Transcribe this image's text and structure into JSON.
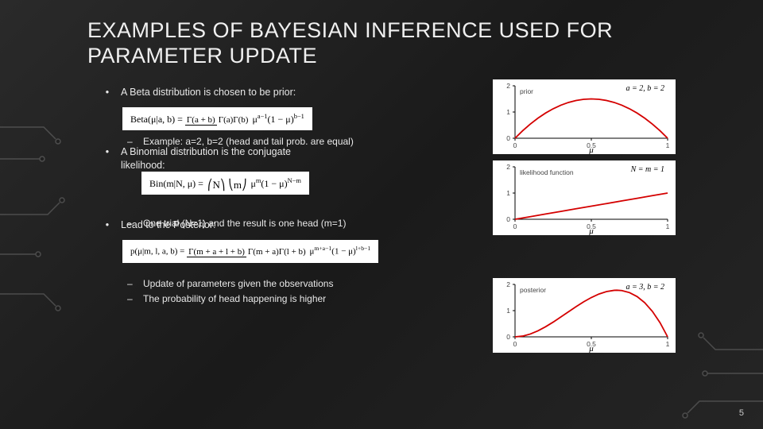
{
  "title": "EXAMPLES OF BAYESIAN INFERENCE USED FOR PARAMETER UPDATE",
  "page_number": "5",
  "bullets": {
    "b1": "A Beta distribution is chosen to be prior:",
    "b1_sub": "Example: a=2, b=2 (head and tail prob. are equal)",
    "b2_l1": "A Binomial distribution is the conjugate",
    "b2_l2": "likelihood:",
    "b2_sub": "One trial (N=1) and the result is one head (m=1)",
    "b3": "Lead to the Posterior:",
    "b3_sub1": "Update of parameters given the observations",
    "b3_sub2": "The probability of head happening is higher"
  },
  "formulas": {
    "beta": "Beta(μ|a, b) = Γ(a + b) / (Γ(a)Γ(b)) · μ^(a−1)(1−μ)^(b−1)",
    "binom": "Bin(m|N, μ) = (N choose m) μ^m (1−μ)^(N−m)",
    "posterior": "p(μ|m, l, a, b) = Γ(m + a + l + b) / (Γ(m + a)Γ(l + b)) · μ^(m+a−1)(1−μ)^(l+b−1)"
  },
  "charts": {
    "prior": {
      "type": "line",
      "title_annot": "a = 2, b = 2",
      "legend": "prior",
      "xlabel": "μ",
      "xlim": [
        0,
        1
      ],
      "ylim": [
        0,
        2
      ],
      "xticks": [
        0,
        0.5,
        1
      ],
      "yticks": [
        0,
        1,
        2
      ],
      "line_color": "#d40000",
      "line_width": 1.8,
      "points": [
        [
          0.0,
          0.0
        ],
        [
          0.05,
          0.285
        ],
        [
          0.1,
          0.54
        ],
        [
          0.15,
          0.765
        ],
        [
          0.2,
          0.96
        ],
        [
          0.25,
          1.125
        ],
        [
          0.3,
          1.26
        ],
        [
          0.35,
          1.365
        ],
        [
          0.4,
          1.44
        ],
        [
          0.45,
          1.485
        ],
        [
          0.5,
          1.5
        ],
        [
          0.55,
          1.485
        ],
        [
          0.6,
          1.44
        ],
        [
          0.65,
          1.365
        ],
        [
          0.7,
          1.26
        ],
        [
          0.75,
          1.125
        ],
        [
          0.8,
          0.96
        ],
        [
          0.85,
          0.765
        ],
        [
          0.9,
          0.54
        ],
        [
          0.95,
          0.285
        ],
        [
          1.0,
          0.0
        ]
      ]
    },
    "likelihood": {
      "type": "line",
      "title_annot": "N = m = 1",
      "legend": "likelihood function",
      "xlabel": "μ",
      "xlim": [
        0,
        1
      ],
      "ylim": [
        0,
        2
      ],
      "xticks": [
        0,
        0.5,
        1
      ],
      "yticks": [
        0,
        1,
        2
      ],
      "line_color": "#d40000",
      "line_width": 1.8,
      "points": [
        [
          0.0,
          0.0
        ],
        [
          0.1,
          0.1
        ],
        [
          0.2,
          0.2
        ],
        [
          0.3,
          0.3
        ],
        [
          0.4,
          0.4
        ],
        [
          0.5,
          0.5
        ],
        [
          0.6,
          0.6
        ],
        [
          0.7,
          0.7
        ],
        [
          0.8,
          0.8
        ],
        [
          0.9,
          0.9
        ],
        [
          1.0,
          1.0
        ]
      ]
    },
    "posterior": {
      "type": "line",
      "title_annot": "a = 3, b = 2",
      "legend": "posterior",
      "xlabel": "μ",
      "xlim": [
        0,
        1
      ],
      "ylim": [
        0,
        2
      ],
      "xticks": [
        0,
        0.5,
        1
      ],
      "yticks": [
        0,
        1,
        2
      ],
      "line_color": "#d40000",
      "line_width": 1.8,
      "points": [
        [
          0.0,
          0.0
        ],
        [
          0.05,
          0.0285
        ],
        [
          0.1,
          0.108
        ],
        [
          0.15,
          0.2295
        ],
        [
          0.2,
          0.384
        ],
        [
          0.25,
          0.5625
        ],
        [
          0.3,
          0.756
        ],
        [
          0.35,
          0.9555
        ],
        [
          0.4,
          1.152
        ],
        [
          0.45,
          1.3365
        ],
        [
          0.5,
          1.5
        ],
        [
          0.55,
          1.6335
        ],
        [
          0.6,
          1.728
        ],
        [
          0.65,
          1.7745
        ],
        [
          0.6667,
          1.778
        ],
        [
          0.7,
          1.764
        ],
        [
          0.75,
          1.6875
        ],
        [
          0.8,
          1.536
        ],
        [
          0.85,
          1.3005
        ],
        [
          0.9,
          0.972
        ],
        [
          0.95,
          0.5415
        ],
        [
          1.0,
          0.0
        ]
      ]
    },
    "axis_color": "#000000",
    "background_color": "#ffffff"
  }
}
